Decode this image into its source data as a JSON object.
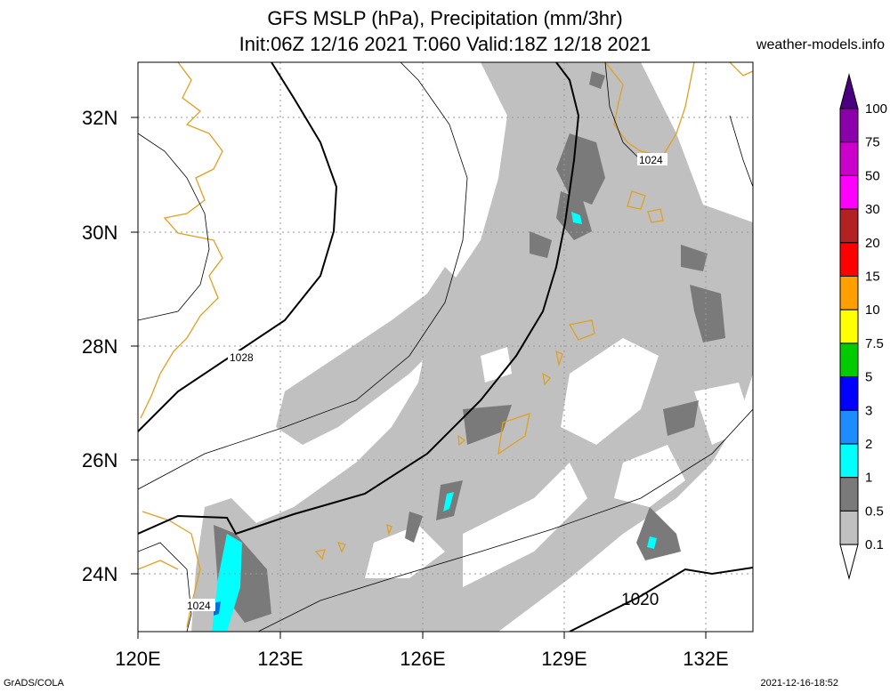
{
  "header": {
    "title_line1": "GFS MSLP (hPa), Precipitation (mm/3hr)",
    "title_line2": "Init:06Z 12/16 2021 T:060 Valid:18Z 12/18 2021",
    "credit": "weather-models.info"
  },
  "map": {
    "lon_range": [
      120,
      133
    ],
    "lat_range": [
      23,
      33
    ],
    "lon_ticks": [
      {
        "value": 120,
        "label": "120E"
      },
      {
        "value": 123,
        "label": "123E"
      },
      {
        "value": 126,
        "label": "126E"
      },
      {
        "value": 129,
        "label": "129E"
      },
      {
        "value": 132,
        "label": "132E"
      }
    ],
    "lat_ticks": [
      {
        "value": 24,
        "label": "24N"
      },
      {
        "value": 26,
        "label": "26N"
      },
      {
        "value": 28,
        "label": "28N"
      },
      {
        "value": 30,
        "label": "30N"
      },
      {
        "value": 32,
        "label": "32N"
      }
    ],
    "isobar_labels": [
      {
        "text": "1028"
      },
      {
        "text": "1024"
      },
      {
        "text": "1024"
      },
      {
        "text": "1020"
      }
    ],
    "colors": {
      "light_precip": "#c0c0c0",
      "mid_precip": "#7a7a7a",
      "heavy_precip": "#00ffff",
      "blue_precip": "#0a6ed8",
      "coastline": "#e0a020",
      "grid": "#999999"
    }
  },
  "colorbar": {
    "levels": [
      {
        "label": "0.1",
        "color": "#ffffff"
      },
      {
        "label": "0.5",
        "color": "#c0c0c0"
      },
      {
        "label": "1",
        "color": "#7a7a7a"
      },
      {
        "label": "2",
        "color": "#00ffff"
      },
      {
        "label": "3",
        "color": "#1e8cff"
      },
      {
        "label": "5",
        "color": "#0000ff"
      },
      {
        "label": "7.5",
        "color": "#00cc00"
      },
      {
        "label": "10",
        "color": "#ffff00"
      },
      {
        "label": "15",
        "color": "#ffa000"
      },
      {
        "label": "20",
        "color": "#ff0000"
      },
      {
        "label": "30",
        "color": "#b22222"
      },
      {
        "label": "50",
        "color": "#ff00ff"
      },
      {
        "label": "75",
        "color": "#cc00cc"
      },
      {
        "label": "100",
        "color": "#8b00aa"
      }
    ],
    "top_color": "#4b0082"
  },
  "footer": {
    "left": "GrADS/COLA",
    "right": "2021-12-16-18:52"
  }
}
